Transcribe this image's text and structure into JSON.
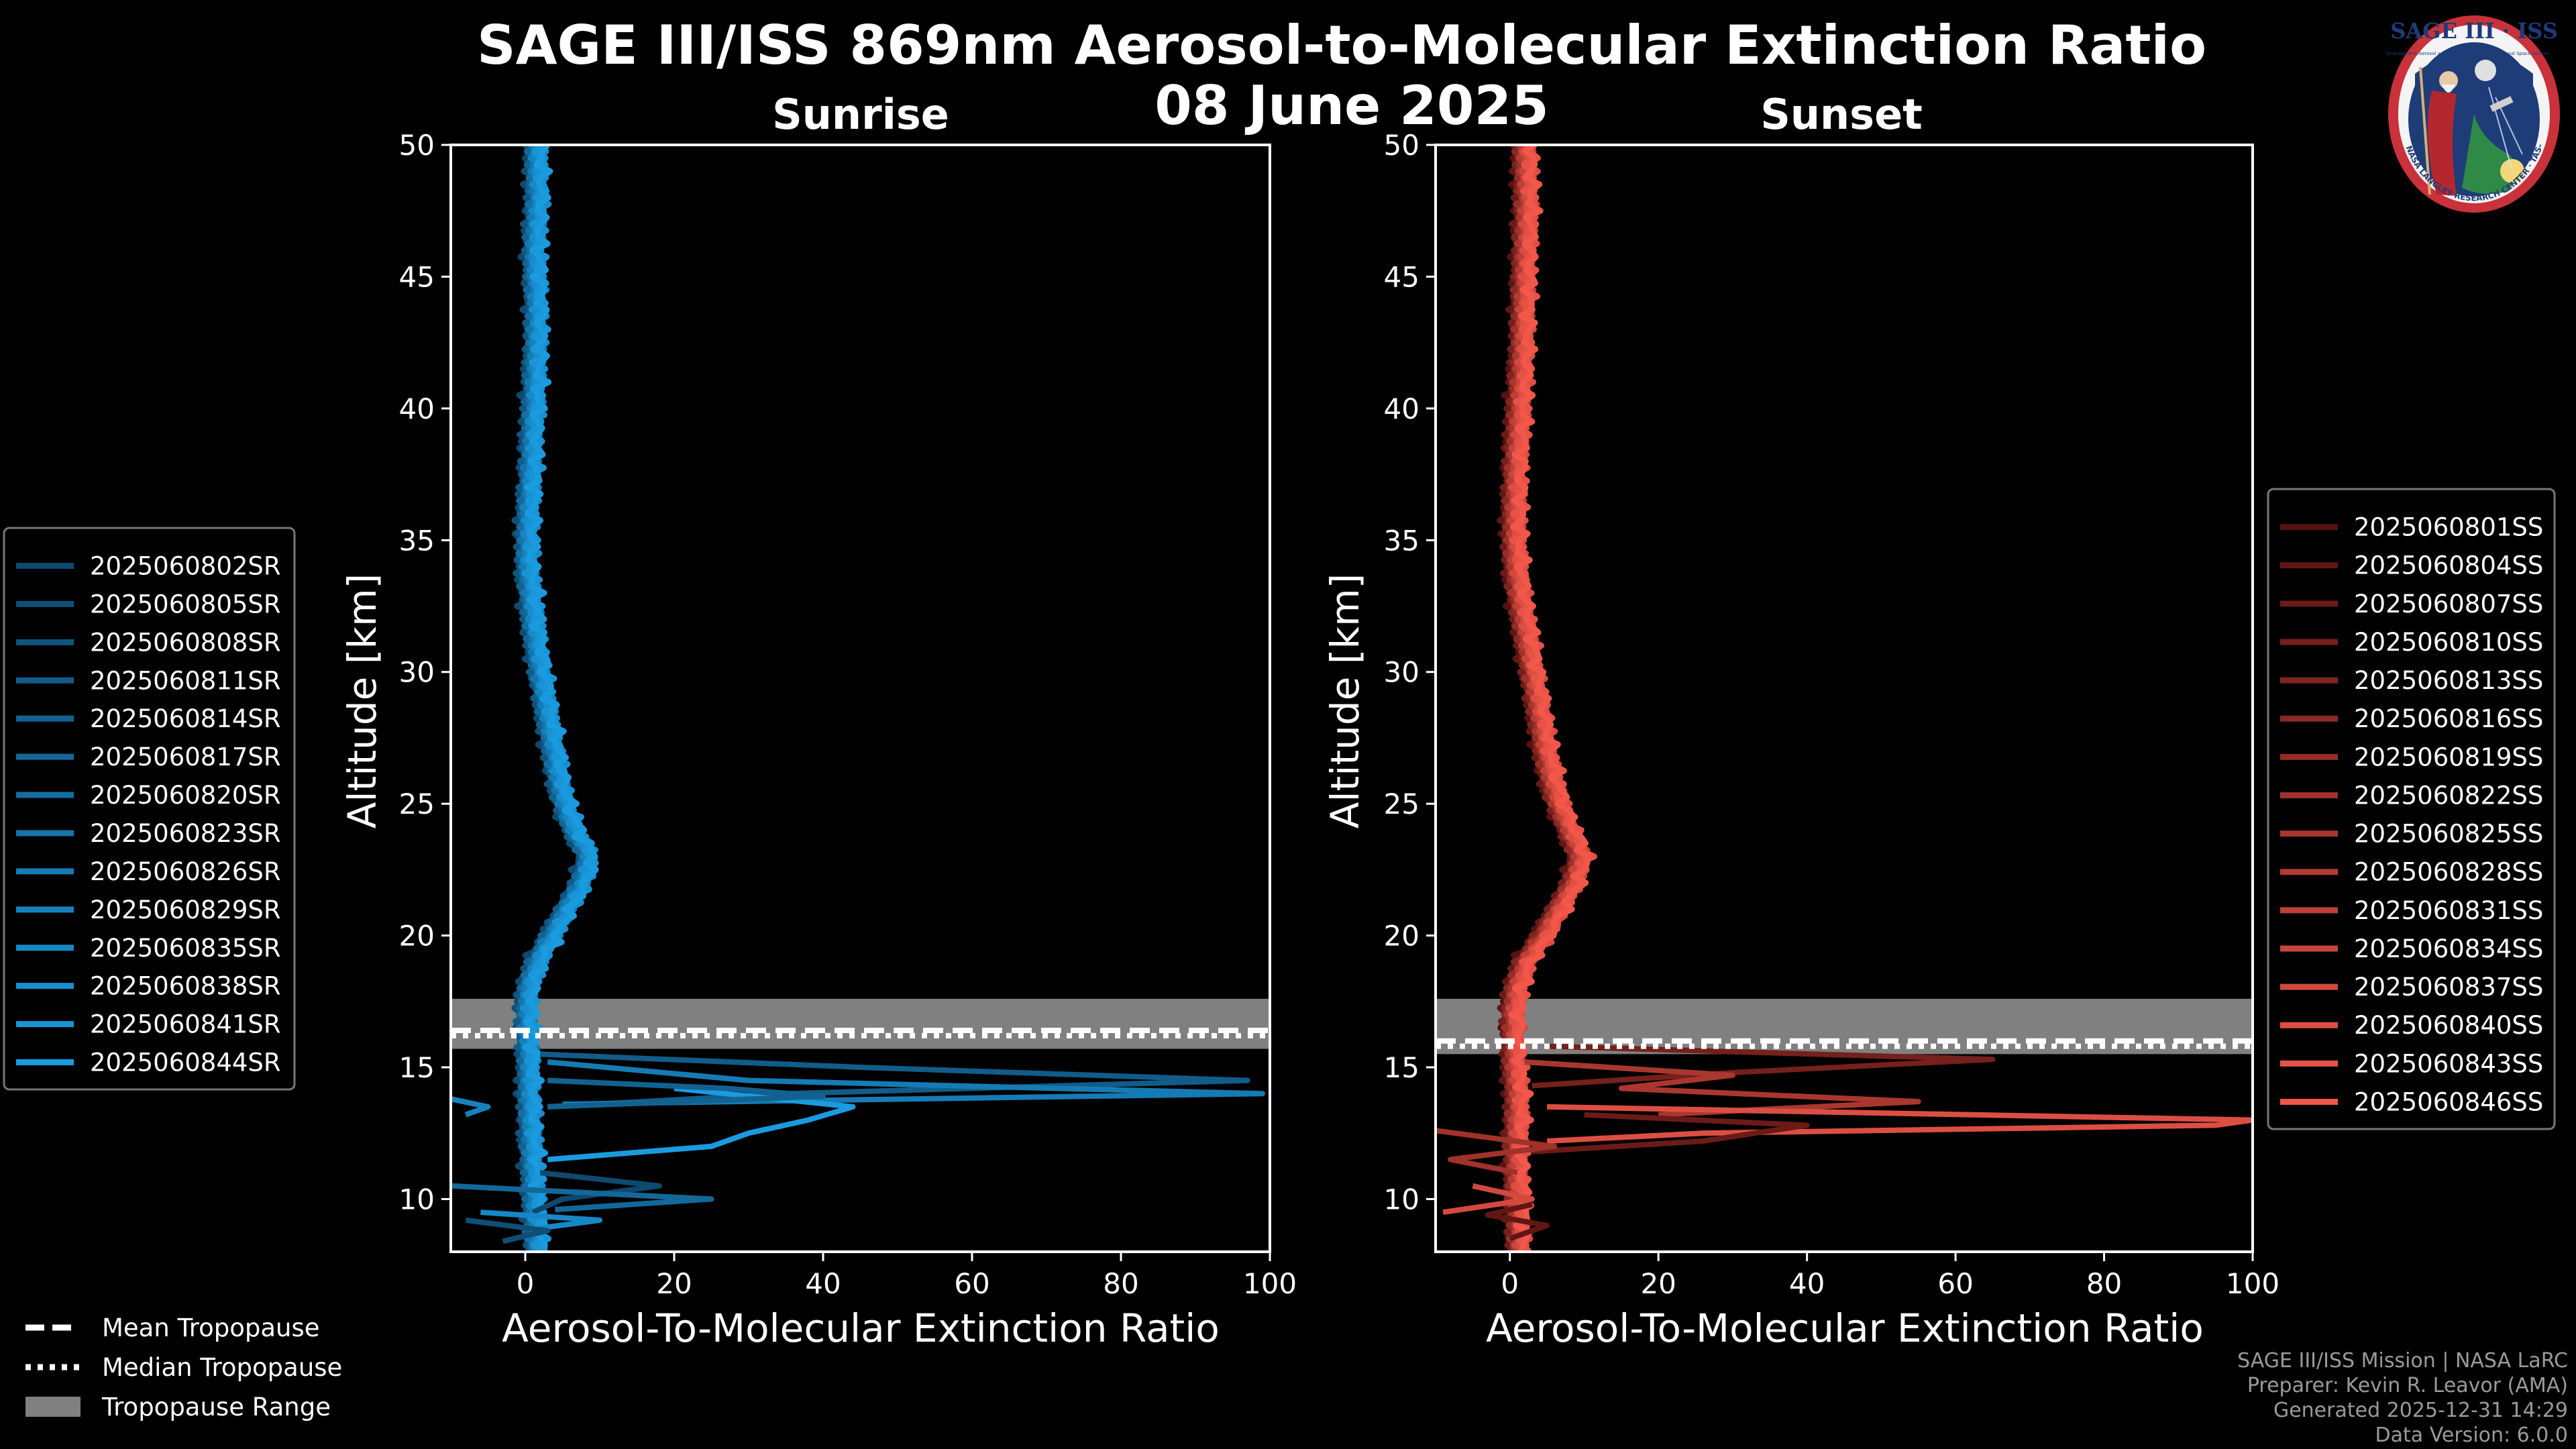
{
  "chart_data": [
    {
      "type": "line",
      "panel": "Sunrise",
      "title": "Sunrise",
      "xlabel": "Aerosol-To-Molecular Extinction Ratio",
      "ylabel": "Altitude [km]",
      "xlim": [
        -10,
        100
      ],
      "ylim": [
        8,
        50
      ],
      "xticks": [
        0,
        20,
        40,
        60,
        80,
        100
      ],
      "yticks": [
        10,
        15,
        20,
        25,
        30,
        35,
        40,
        45,
        50
      ],
      "tropopause": {
        "mean": 16.4,
        "median": 16.2,
        "range": [
          15.7,
          17.6
        ]
      },
      "color_dark": "#0c3a5a",
      "color_light": "#1a9be0",
      "base_profile": {
        "altitude": [
          8,
          10,
          12,
          14,
          15,
          16,
          17,
          18,
          19,
          20,
          21,
          22,
          23,
          24,
          25,
          26,
          27,
          28,
          29,
          30,
          31,
          32,
          33,
          34,
          35,
          36,
          37,
          38,
          39,
          40,
          42,
          44,
          46,
          48,
          50
        ],
        "ratio": [
          1.5,
          1.2,
          0.8,
          0.5,
          0.5,
          0.3,
          0.2,
          0.4,
          1.5,
          3.5,
          5.5,
          7.5,
          8.5,
          6.5,
          5.2,
          4.4,
          3.8,
          3.2,
          2.6,
          2.0,
          1.5,
          1.0,
          0.7,
          0.3,
          0.3,
          0.4,
          0.6,
          0.8,
          0.9,
          1.1,
          1.4,
          1.5,
          1.2,
          1.6,
          1.5
        ]
      },
      "spikes": [
        {
          "altitude": [
            15.5,
            15.0,
            14.5,
            14.0,
            13.5
          ],
          "ratio": [
            2,
            45,
            97,
            35,
            3
          ]
        },
        {
          "altitude": [
            15.2,
            14.5,
            14.0,
            13.6
          ],
          "ratio": [
            3,
            30,
            99,
            5
          ]
        },
        {
          "altitude": [
            14.2,
            13.5,
            13.0,
            12.5,
            12.0,
            11.5
          ],
          "ratio": [
            20,
            44,
            38,
            30,
            25,
            3
          ]
        },
        {
          "altitude": [
            14.5,
            14.2,
            13.9,
            13.5
          ],
          "ratio": [
            3,
            27,
            40,
            3
          ]
        },
        {
          "altitude": [
            13.8,
            13.5,
            13.2
          ],
          "ratio": [
            -10,
            -5,
            -8
          ]
        },
        {
          "altitude": [
            11.0,
            10.5,
            10.0,
            9.5
          ],
          "ratio": [
            2,
            18,
            5,
            1
          ]
        },
        {
          "altitude": [
            10.5,
            10.0,
            9.6
          ],
          "ratio": [
            -10,
            25,
            4
          ]
        },
        {
          "altitude": [
            9.5,
            9.2,
            8.9
          ],
          "ratio": [
            -6,
            10,
            2
          ]
        },
        {
          "altitude": [
            9.2,
            8.8,
            8.4
          ],
          "ratio": [
            -8,
            3,
            -3
          ]
        }
      ],
      "series": [
        {
          "name": "2025060802SR"
        },
        {
          "name": "2025060805SR"
        },
        {
          "name": "2025060808SR"
        },
        {
          "name": "2025060811SR"
        },
        {
          "name": "2025060814SR"
        },
        {
          "name": "2025060817SR"
        },
        {
          "name": "2025060820SR"
        },
        {
          "name": "2025060823SR"
        },
        {
          "name": "2025060826SR"
        },
        {
          "name": "2025060829SR"
        },
        {
          "name": "2025060835SR"
        },
        {
          "name": "2025060838SR"
        },
        {
          "name": "2025060841SR"
        },
        {
          "name": "2025060844SR"
        }
      ]
    },
    {
      "type": "line",
      "panel": "Sunset",
      "title": "Sunset",
      "xlabel": "Aerosol-To-Molecular Extinction Ratio",
      "ylabel": "Altitude [km]",
      "xlim": [
        -10,
        100
      ],
      "ylim": [
        8,
        50
      ],
      "xticks": [
        0,
        20,
        40,
        60,
        80,
        100
      ],
      "yticks": [
        10,
        15,
        20,
        25,
        30,
        35,
        40,
        45,
        50
      ],
      "tropopause": {
        "mean": 16.0,
        "median": 15.8,
        "range": [
          15.5,
          17.6
        ]
      },
      "color_dark": "#3a0606",
      "color_light": "#f2574a",
      "base_profile": {
        "altitude": [
          8,
          10,
          12,
          14,
          15,
          16,
          17,
          18,
          19,
          20,
          21,
          22,
          23,
          24,
          25,
          26,
          27,
          28,
          29,
          30,
          31,
          32,
          33,
          34,
          35,
          36,
          37,
          38,
          39,
          40,
          42,
          44,
          46,
          48,
          50
        ],
        "ratio": [
          1.2,
          1.0,
          0.8,
          1.0,
          0.6,
          0.5,
          0.4,
          0.8,
          2.0,
          4.5,
          6.5,
          8.5,
          9.5,
          8.0,
          6.5,
          5.5,
          4.8,
          4.2,
          3.6,
          3.0,
          2.4,
          1.8,
          1.2,
          0.8,
          0.6,
          0.6,
          0.7,
          0.8,
          1.0,
          1.2,
          1.6,
          1.8,
          2.0,
          2.2,
          2.0
        ]
      },
      "spikes": [
        {
          "altitude": [
            15.8,
            15.3,
            14.8,
            14.3
          ],
          "ratio": [
            5,
            65,
            30,
            3
          ]
        },
        {
          "altitude": [
            15.2,
            14.7,
            14.2,
            13.7,
            13.2
          ],
          "ratio": [
            2,
            30,
            15,
            55,
            20
          ]
        },
        {
          "altitude": [
            13.5,
            13.0,
            12.8,
            12.5,
            12.2
          ],
          "ratio": [
            5,
            100,
            95,
            26,
            5
          ]
        },
        {
          "altitude": [
            13.2,
            12.8,
            12.2,
            11.8
          ],
          "ratio": [
            10,
            40,
            26,
            3
          ]
        },
        {
          "altitude": [
            12.6,
            12.0,
            11.5,
            11.0
          ],
          "ratio": [
            -10,
            6,
            -8,
            1
          ]
        },
        {
          "altitude": [
            10.5,
            10.0,
            9.5
          ],
          "ratio": [
            -5,
            3,
            -9
          ]
        },
        {
          "altitude": [
            9.8,
            9.4,
            9.0,
            8.5
          ],
          "ratio": [
            3,
            -3,
            5,
            0
          ]
        }
      ],
      "series": [
        {
          "name": "2025060801SS"
        },
        {
          "name": "2025060804SS"
        },
        {
          "name": "2025060807SS"
        },
        {
          "name": "2025060810SS"
        },
        {
          "name": "2025060813SS"
        },
        {
          "name": "2025060816SS"
        },
        {
          "name": "2025060819SS"
        },
        {
          "name": "2025060822SS"
        },
        {
          "name": "2025060825SS"
        },
        {
          "name": "2025060828SS"
        },
        {
          "name": "2025060831SS"
        },
        {
          "name": "2025060834SS"
        },
        {
          "name": "2025060837SS"
        },
        {
          "name": "2025060840SS"
        },
        {
          "name": "2025060843SS"
        },
        {
          "name": "2025060846SS"
        }
      ]
    }
  ],
  "header": {
    "title": "SAGE III/ISS 869nm Aerosol-to-Molecular Extinction Ratio",
    "date": "08 June 2025"
  },
  "tropopause_legend": {
    "mean": "Mean Tropopause",
    "median": "Median Tropopause",
    "range": "Tropopause Range"
  },
  "logo": {
    "text": "SAGE III · ISS",
    "subtitle_left": "Stratospheric Aerosol and Gas Experiment III",
    "subtitle_right": "International Space Station",
    "ring_text": "BALL · NASA LANGLEY RESEARCH CENTER · TAS-I · ESA"
  },
  "credits": {
    "line1": "SAGE III/ISS Mission | NASA LaRC",
    "line2": "Preparer: Kevin R. Leavor (AMA)",
    "line3": "Generated 2025-12-31 14:29",
    "line4": "Data Version: 6.0.0"
  },
  "colors": {
    "tropopause_band": "#808080",
    "credit_text": "#9a9a9a"
  }
}
